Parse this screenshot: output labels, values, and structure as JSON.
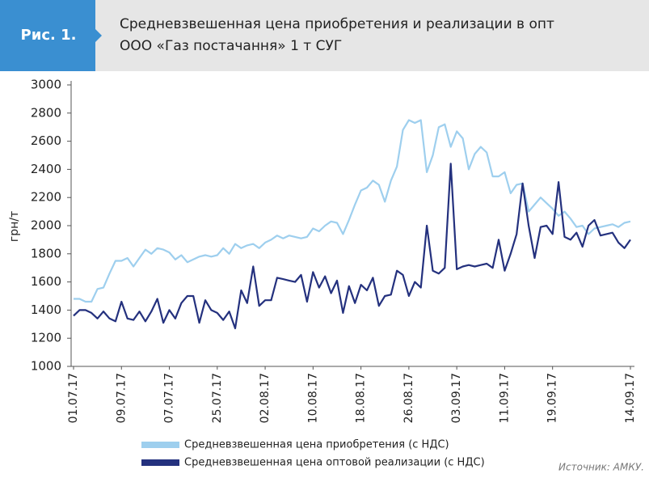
{
  "figure_label": "Рис. 1.",
  "chart_data": {
    "type": "line",
    "title": [
      "Средневзвешенная цена приобретения и реализации в опт",
      "ООО «Газ постачання» 1 т СУГ"
    ],
    "y_label": "грн/т",
    "source": "Источник: АМКУ.",
    "categories": [
      "01.07.17",
      null,
      null,
      null,
      null,
      null,
      null,
      null,
      "09.07.17",
      null,
      null,
      null,
      null,
      null,
      null,
      null,
      "07.07.17",
      null,
      null,
      null,
      null,
      null,
      null,
      null,
      "25.07.17",
      null,
      null,
      null,
      null,
      null,
      null,
      null,
      "02.08.17",
      null,
      null,
      null,
      null,
      null,
      null,
      null,
      "10.08.17",
      null,
      null,
      null,
      null,
      null,
      null,
      null,
      "18.08.17",
      null,
      null,
      null,
      null,
      null,
      null,
      null,
      "26.08.17",
      null,
      null,
      null,
      null,
      null,
      null,
      null,
      "03.09.17",
      null,
      null,
      null,
      null,
      null,
      null,
      null,
      "11.09.17",
      null,
      null,
      null,
      null,
      null,
      null,
      null,
      "19.09.17",
      null,
      null,
      null,
      null,
      null,
      null,
      null,
      null,
      null,
      null,
      null,
      null,
      "14.09.17"
    ],
    "ylim": [
      1000,
      3000
    ],
    "yticks": [
      1000,
      1200,
      1400,
      1600,
      1800,
      2000,
      2200,
      2400,
      2600,
      2800,
      3000
    ],
    "legend": "bottom",
    "series": [
      {
        "name": "Средневзвешенная цена приобретения (с НДС)",
        "color": "#9ecfee",
        "values": [
          1480,
          1480,
          1460,
          1460,
          1550,
          1560,
          1660,
          1750,
          1750,
          1770,
          1710,
          1770,
          1830,
          1800,
          1840,
          1830,
          1810,
          1760,
          1790,
          1740,
          1760,
          1780,
          1790,
          1780,
          1790,
          1840,
          1800,
          1870,
          1840,
          1860,
          1870,
          1840,
          1880,
          1900,
          1930,
          1910,
          1930,
          1920,
          1910,
          1920,
          1980,
          1960,
          2000,
          2030,
          2020,
          1940,
          2040,
          2150,
          2250,
          2270,
          2320,
          2290,
          2170,
          2320,
          2420,
          2680,
          2750,
          2730,
          2750,
          2380,
          2500,
          2700,
          2720,
          2560,
          2670,
          2620,
          2400,
          2510,
          2560,
          2520,
          2350,
          2350,
          2380,
          2230,
          2290,
          2300,
          2100,
          2150,
          2200,
          2160,
          2120,
          2070,
          2100,
          2050,
          1990,
          2000,
          1940,
          1980,
          1990,
          2000,
          2010,
          1990,
          2020,
          2030
        ]
      },
      {
        "name": "Средневзвешенная цена оптовой реализации (с НДС)",
        "color": "#24317e",
        "values": [
          1360,
          1400,
          1400,
          1380,
          1340,
          1390,
          1340,
          1320,
          1460,
          1340,
          1330,
          1390,
          1320,
          1390,
          1480,
          1310,
          1400,
          1340,
          1450,
          1500,
          1500,
          1310,
          1470,
          1400,
          1380,
          1330,
          1390,
          1270,
          1540,
          1450,
          1710,
          1430,
          1470,
          1470,
          1630,
          1620,
          1610,
          1600,
          1650,
          1460,
          1670,
          1560,
          1640,
          1520,
          1610,
          1380,
          1570,
          1450,
          1580,
          1540,
          1630,
          1430,
          1500,
          1510,
          1680,
          1650,
          1500,
          1600,
          1560,
          2000,
          1680,
          1660,
          1700,
          2440,
          1690,
          1710,
          1720,
          1710,
          1720,
          1730,
          1700,
          1900,
          1680,
          1800,
          1940,
          2300,
          2000,
          1770,
          1990,
          2000,
          1940,
          2310,
          1920,
          1900,
          1950,
          1850,
          2000,
          2040,
          1930,
          1940,
          1950,
          1880,
          1840,
          1900
        ]
      }
    ]
  }
}
